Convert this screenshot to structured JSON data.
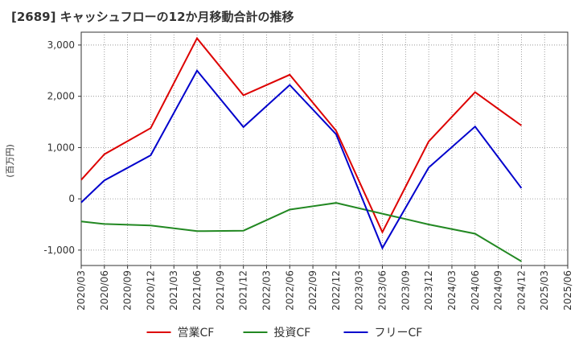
{
  "chart_data": {
    "type": "line",
    "title": "[2689]  キャッシュフローの12か月移動合計の推移",
    "ylabel": "(百万円)",
    "xlabel": "",
    "ylim": [
      -1300,
      3250
    ],
    "yticks": [
      -1000,
      0,
      1000,
      2000,
      3000
    ],
    "ytick_labels": [
      "-1,000",
      "0",
      "1,000",
      "2,000",
      "3,000"
    ],
    "categories": [
      "2020/03",
      "2020/06",
      "2020/09",
      "2020/12",
      "2021/03",
      "2021/06",
      "2021/09",
      "2021/12",
      "2022/03",
      "2022/06",
      "2022/09",
      "2022/12",
      "2023/03",
      "2023/06",
      "2023/09",
      "2023/12",
      "2024/03",
      "2024/06",
      "2024/09",
      "2024/12",
      "2025/03",
      "2025/06"
    ],
    "grid": true,
    "legend_position": "bottom",
    "series": [
      {
        "name": "営業CF",
        "color": "#dd0000",
        "points": [
          [
            0,
            370
          ],
          [
            1,
            870
          ],
          [
            3,
            1380
          ],
          [
            5,
            3130
          ],
          [
            7,
            2020
          ],
          [
            9,
            2420
          ],
          [
            11,
            1330
          ],
          [
            13,
            -650
          ],
          [
            15,
            1120
          ],
          [
            17,
            2080
          ],
          [
            19,
            1430
          ]
        ]
      },
      {
        "name": "投資CF",
        "color": "#228822",
        "points": [
          [
            0,
            -440
          ],
          [
            1,
            -490
          ],
          [
            3,
            -520
          ],
          [
            5,
            -630
          ],
          [
            7,
            -620
          ],
          [
            9,
            -210
          ],
          [
            11,
            -80
          ],
          [
            13,
            -290
          ],
          [
            15,
            -500
          ],
          [
            17,
            -680
          ],
          [
            19,
            -1220
          ]
        ]
      },
      {
        "name": "フリーCF",
        "color": "#0000cc",
        "points": [
          [
            0,
            -70
          ],
          [
            1,
            360
          ],
          [
            3,
            850
          ],
          [
            5,
            2500
          ],
          [
            7,
            1400
          ],
          [
            9,
            2220
          ],
          [
            11,
            1260
          ],
          [
            13,
            -960
          ],
          [
            15,
            610
          ],
          [
            17,
            1410
          ],
          [
            19,
            210
          ]
        ]
      }
    ]
  }
}
